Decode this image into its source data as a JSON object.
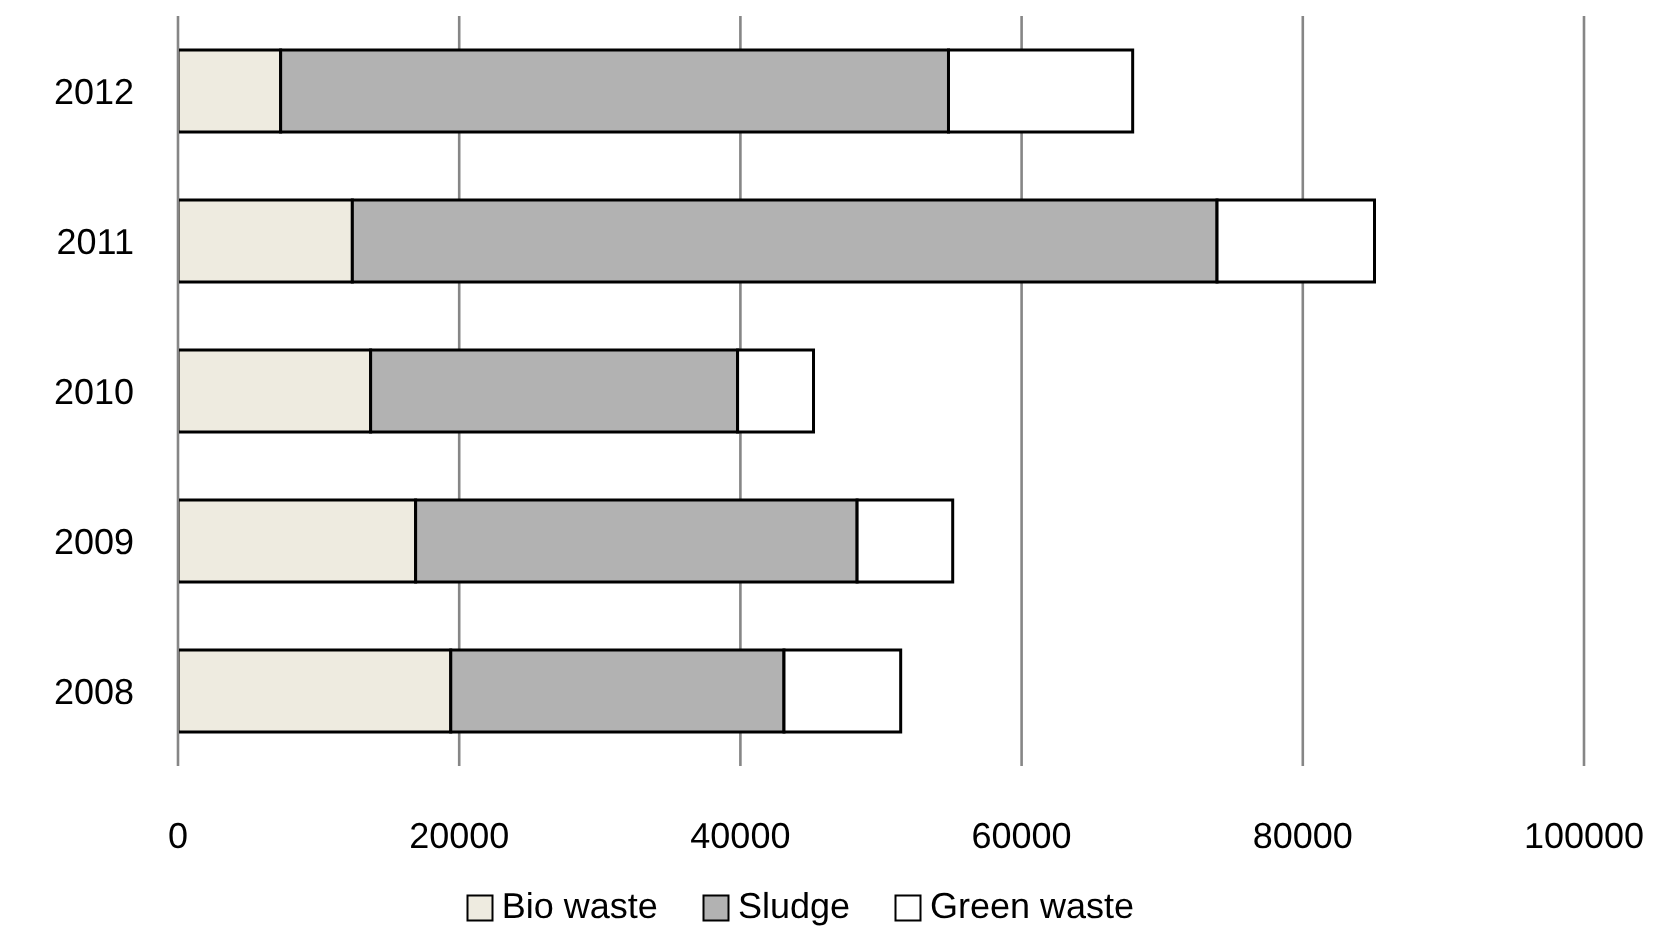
{
  "chart_data": {
    "type": "bar",
    "orientation": "horizontal",
    "stacked": true,
    "categories": [
      "2012",
      "2011",
      "2010",
      "2009",
      "2008"
    ],
    "series": [
      {
        "name": "Bio waste",
        "color": "#eeebe0",
        "values": [
          7300,
          12400,
          13700,
          16900,
          19400
        ]
      },
      {
        "name": "Sludge",
        "color": "#b2b2b2",
        "values": [
          47500,
          61500,
          26100,
          31400,
          23700
        ]
      },
      {
        "name": "Green waste",
        "color": "#ffffff",
        "values": [
          13100,
          11200,
          5400,
          6800,
          8300
        ]
      }
    ],
    "xlim": [
      0,
      100000
    ],
    "xticks": [
      0,
      20000,
      40000,
      60000,
      80000,
      100000
    ],
    "grid": "x",
    "legend": "bottom"
  }
}
